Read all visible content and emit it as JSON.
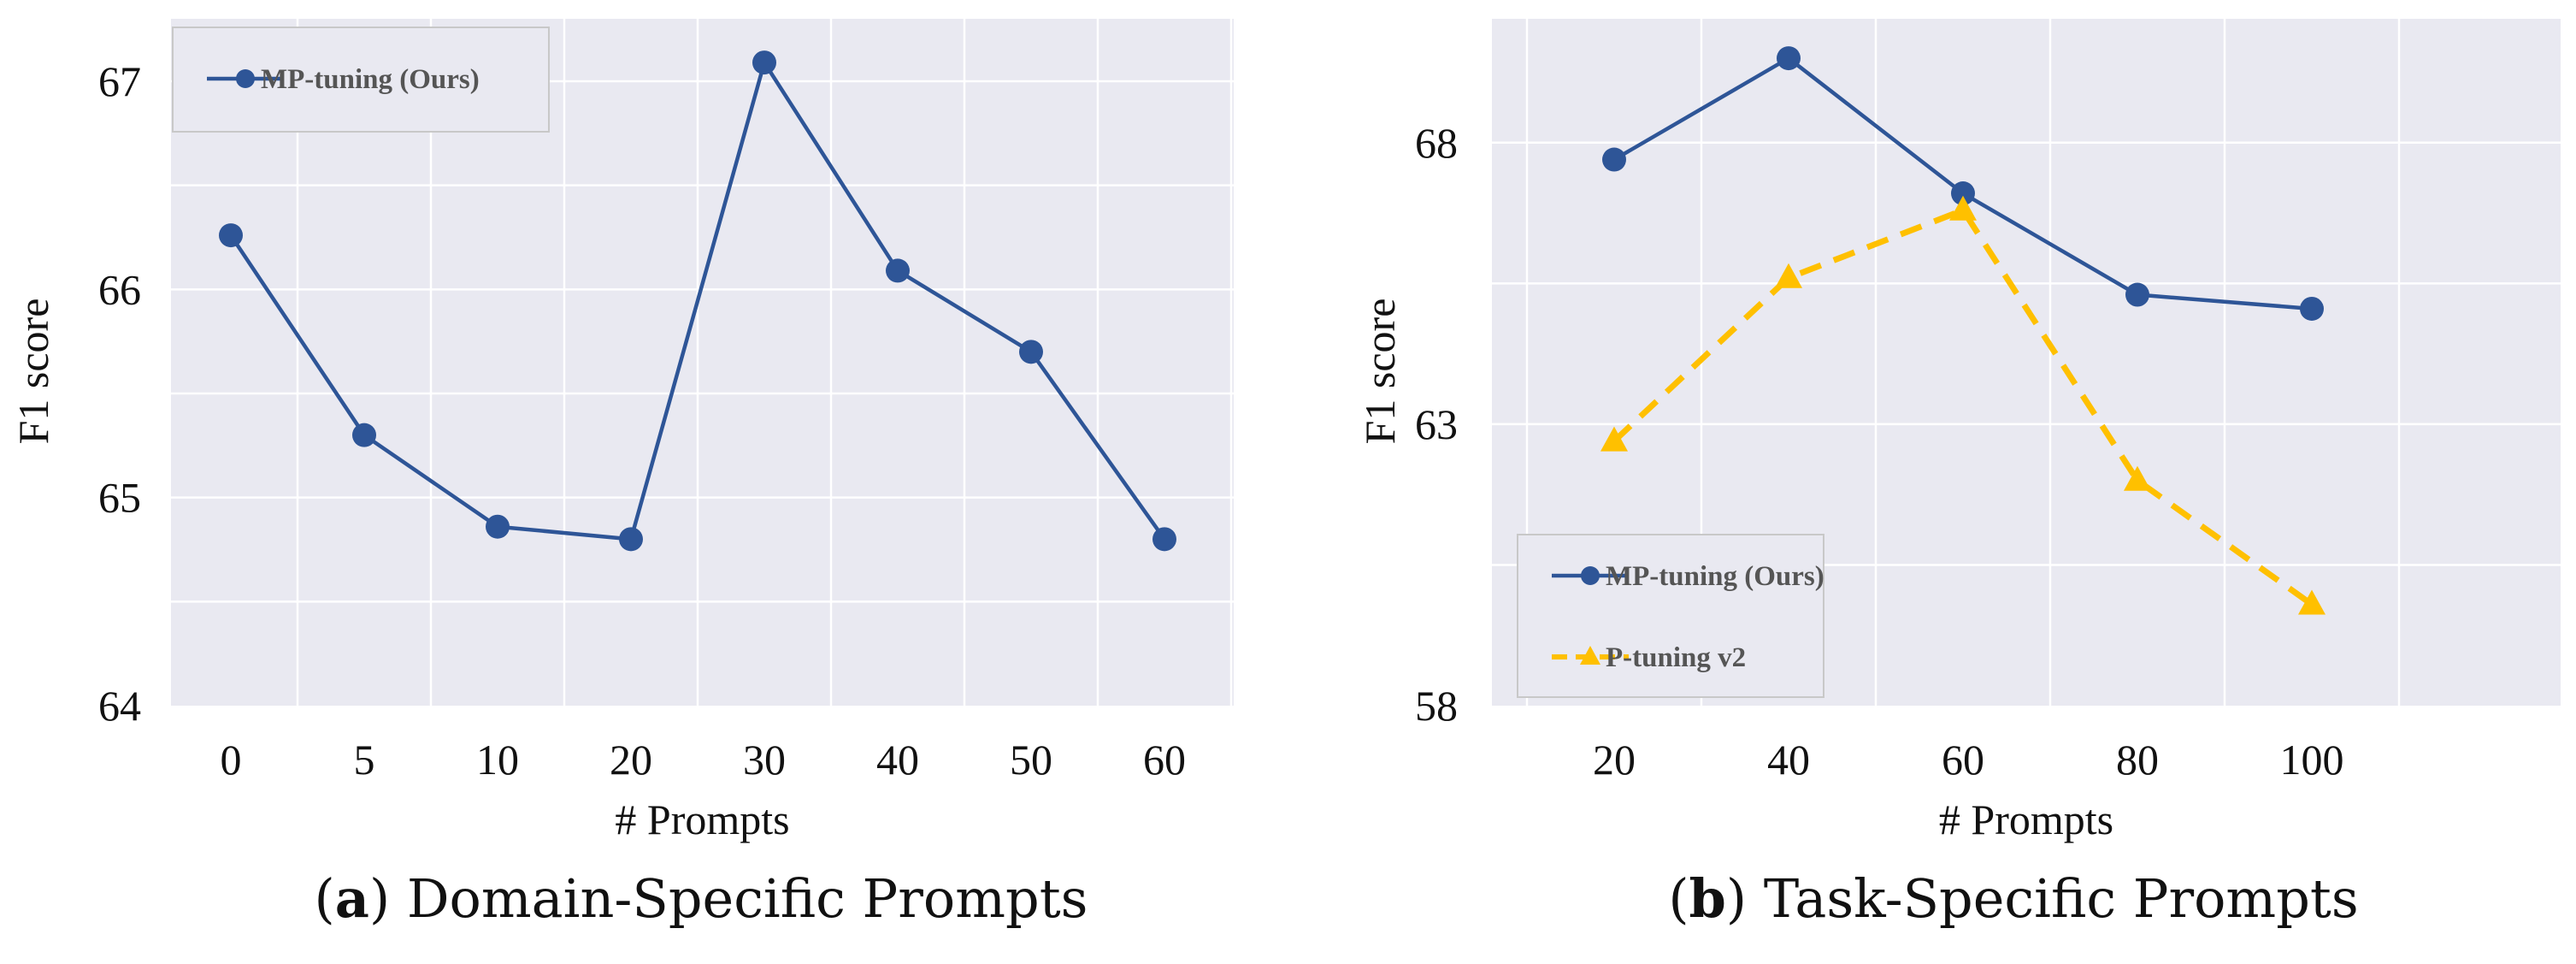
{
  "chart_data": [
    {
      "type": "line",
      "panel_letter": "a",
      "caption": "Domain-Specific Prompts",
      "title": "",
      "xlabel": "# Prompts",
      "ylabel": "F1 score",
      "categories": [
        "0",
        "5",
        "10",
        "20",
        "30",
        "40",
        "50",
        "60"
      ],
      "ylim": [
        64,
        67.3
      ],
      "yticks": [
        64,
        65,
        66,
        67
      ],
      "grid": true,
      "legend_position": "top-left",
      "series": [
        {
          "name": "MP-tuning (Ours)",
          "values": [
            66.26,
            65.3,
            64.86,
            64.8,
            67.09,
            66.09,
            65.7,
            64.8
          ],
          "color": "#2e5597",
          "marker": "circle",
          "line_style": "solid"
        }
      ]
    },
    {
      "type": "line",
      "panel_letter": "b",
      "caption": "Task-Specific Prompts",
      "title": "",
      "xlabel": "# Prompts",
      "ylabel": "F1 score",
      "categories": [
        "20",
        "40",
        "60",
        "80",
        "100"
      ],
      "ylim": [
        58,
        70.2
      ],
      "yticks": [
        58,
        63,
        68
      ],
      "ytick_labels": [
        "58",
        "63",
        "68"
      ],
      "grid": true,
      "legend_position": "bottom-left",
      "series": [
        {
          "name": "MP-tuning (Ours)",
          "values": [
            67.7,
            69.5,
            67.1,
            65.3,
            65.05
          ],
          "color": "#2e5597",
          "marker": "circle",
          "line_style": "solid"
        },
        {
          "name": "P-tuning v2",
          "values": [
            62.7,
            65.6,
            66.8,
            62.0,
            59.8
          ],
          "color": "#ffc000",
          "marker": "triangle",
          "line_style": "dashed"
        }
      ]
    }
  ]
}
